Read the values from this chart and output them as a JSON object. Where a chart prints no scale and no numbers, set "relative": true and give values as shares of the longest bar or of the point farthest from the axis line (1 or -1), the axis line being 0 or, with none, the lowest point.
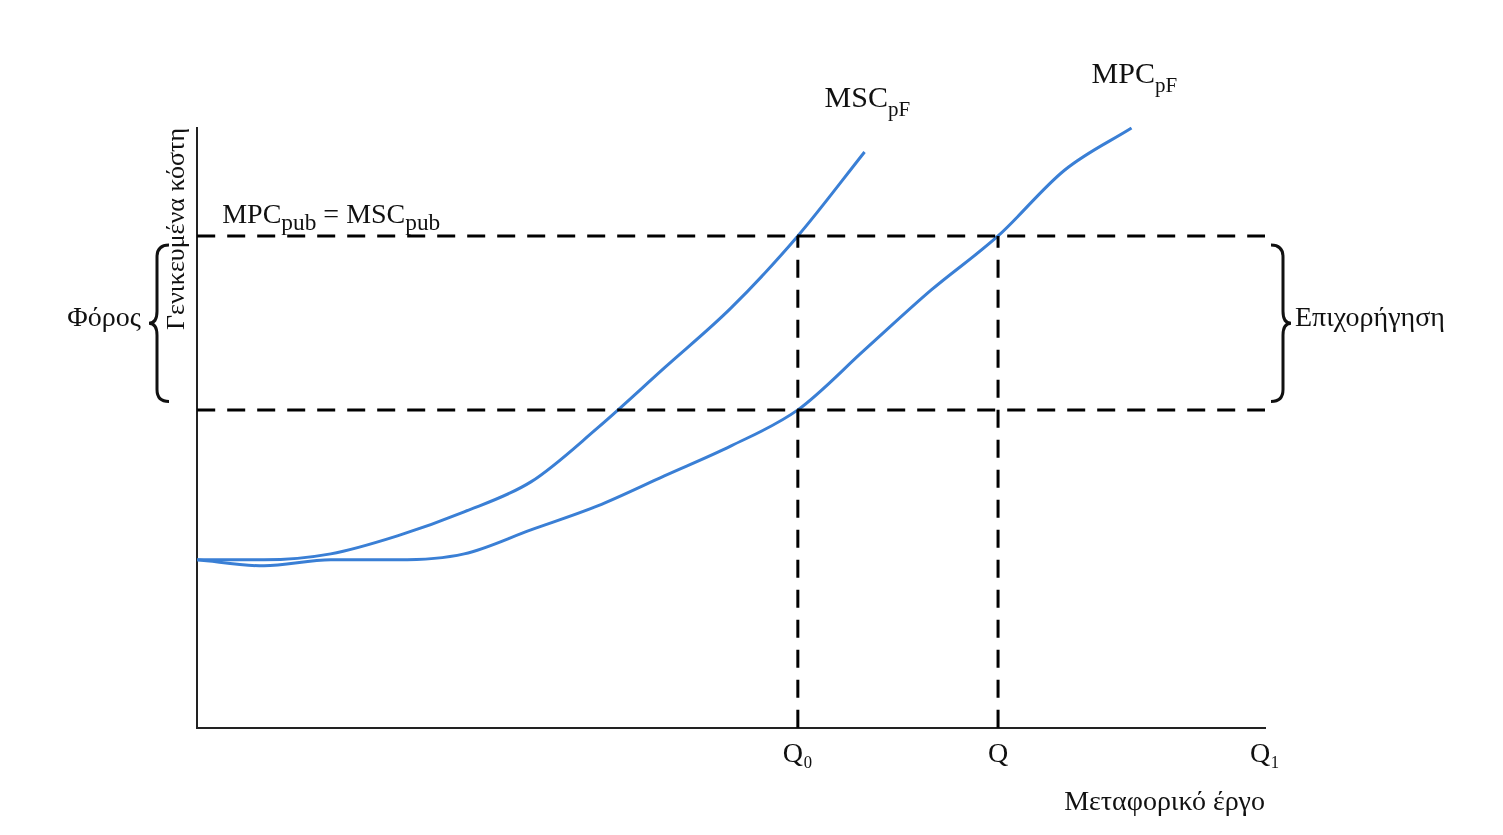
{
  "chart_data": {
    "type": "line",
    "relative": true,
    "xlabel": "Μεταφορικό έργο",
    "ylabel": "Γενικευμένα κόστη",
    "categories": [
      null,
      null,
      null,
      null,
      null,
      null,
      null,
      null,
      null,
      "Q₀",
      null,
      null,
      "Q",
      null,
      null,
      null,
      "Q₁"
    ],
    "series": [
      {
        "name": "MSC$_{pF}$",
        "color": "#3a7fd5",
        "values": [
          0.28,
          0.28,
          0.29,
          0.32,
          0.36,
          0.41,
          0.5,
          0.6,
          0.7,
          0.82,
          0.96,
          null,
          null,
          null,
          null,
          null,
          null
        ]
      },
      {
        "name": "MPC$_{pF}$",
        "color": "#3a7fd5",
        "values": [
          0.28,
          0.27,
          0.28,
          0.28,
          0.29,
          0.33,
          0.37,
          0.42,
          0.47,
          0.53,
          0.63,
          0.73,
          0.82,
          0.93,
          1,
          null,
          null
        ]
      }
    ],
    "ref_lines": [
      {
        "axis": "y",
        "value": 0.82,
        "color": "#000000",
        "line_style": "dashed"
      },
      {
        "axis": "y",
        "value": 0.53,
        "color": "#000000",
        "line_style": "dashed"
      },
      {
        "axis": "x",
        "value": "Q₀",
        "color": "#000000",
        "line_style": "dashed"
      },
      {
        "axis": "x",
        "value": "Q",
        "color": "#000000",
        "line_style": "dashed"
      }
    ],
    "annotations": [
      "MPC$_{pub}$ = MSC$_{pub}$",
      "Φόρος",
      "Επιχορήγηση"
    ],
    "grid": false,
    "legend": false,
    "marker": "none",
    "line_style": "solid",
    "tick_labels": "x"
  }
}
